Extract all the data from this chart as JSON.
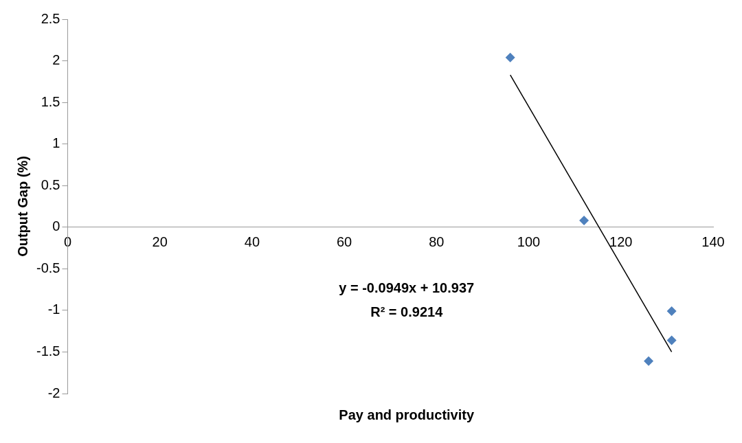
{
  "chart_data": {
    "type": "scatter",
    "xlabel": "Pay and productivity",
    "ylabel": "Output Gap (%)",
    "xlim": [
      0,
      140
    ],
    "xticks": [
      0,
      20,
      40,
      60,
      80,
      100,
      120,
      140
    ],
    "ylim": [
      -2,
      2.5
    ],
    "yticks": [
      -2,
      -1.5,
      -1,
      -0.5,
      0,
      0.5,
      1,
      1.5,
      2,
      2.5
    ],
    "grid": false,
    "legend": false,
    "marker": "diamond",
    "series": [
      {
        "color": "#4f81bd",
        "x": [
          96,
          112,
          126,
          131,
          131
        ],
        "values": [
          2.04,
          0.08,
          -1.61,
          -1.01,
          -1.36
        ]
      },
      {
        "type": "line",
        "color": "#000000",
        "marker": "none",
        "x": [
          96,
          131
        ],
        "values": [
          1.83,
          -1.5
        ]
      }
    ],
    "annotations": [
      "y = -0.0949x + 10.937",
      "R² = 0.9214"
    ]
  }
}
